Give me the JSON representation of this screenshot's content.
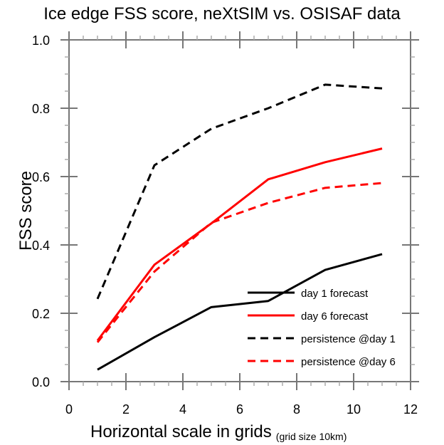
{
  "chart_data": {
    "type": "line",
    "title": "Ice edge FSS score, neXtSIM vs. OSISAF data",
    "xlabel": "Horizontal scale in grids",
    "xlabel_note": "(grid size 10km)",
    "ylabel": "FSS score",
    "xlim": [
      0,
      12
    ],
    "ylim": [
      0,
      1.0
    ],
    "x_ticks": [
      0,
      2,
      4,
      6,
      8,
      10,
      12
    ],
    "x_tick_labels": [
      "0",
      "2",
      "4",
      "6",
      "8",
      "10",
      "12"
    ],
    "y_ticks": [
      0,
      0.2,
      0.4,
      0.6,
      0.8,
      1.0
    ],
    "y_tick_labels": [
      "0.0",
      "0.2",
      "0.4",
      "0.6",
      "0.8",
      "1.0"
    ],
    "x_minor_step": 0.5,
    "y_minor_step": 0.05,
    "grid": false,
    "legend_position": "bottom-right",
    "x": [
      1,
      3,
      5,
      7,
      9,
      11
    ],
    "series": [
      {
        "name": "day 1 forecast",
        "color": "#000000",
        "dash": "solid",
        "values": [
          0.035,
          0.13,
          0.218,
          0.236,
          0.327,
          0.373
        ]
      },
      {
        "name": "day 6 forecast",
        "color": "#ff0000",
        "dash": "solid",
        "values": [
          0.12,
          0.342,
          0.463,
          0.592,
          0.642,
          0.682
        ]
      },
      {
        "name": "persistence @day 1",
        "color": "#000000",
        "dash": "dashed",
        "values": [
          0.242,
          0.633,
          0.74,
          0.8,
          0.869,
          0.858
        ]
      },
      {
        "name": "persistence @day 6",
        "color": "#ff0000",
        "dash": "dashed",
        "values": [
          0.115,
          0.322,
          0.465,
          0.523,
          0.567,
          0.581
        ]
      }
    ]
  }
}
